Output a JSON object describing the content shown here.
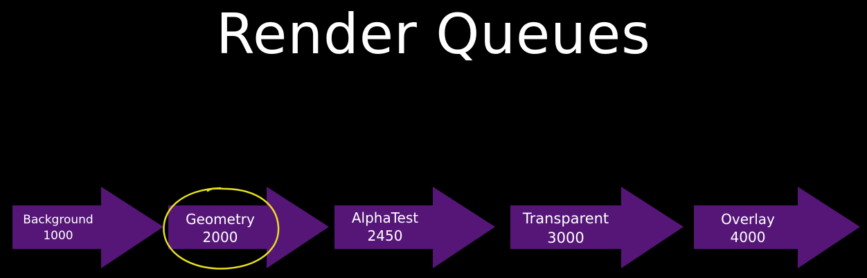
{
  "title": "Render Queues",
  "colors": {
    "background": "#000000",
    "arrow_fill": "#551677",
    "text": "#ffffff",
    "highlight_circle": "#e7e21f"
  },
  "queues": [
    {
      "name": "Background",
      "value": "1000"
    },
    {
      "name": "Geometry",
      "value": "2000"
    },
    {
      "name": "AlphaTest",
      "value": "2450"
    },
    {
      "name": "Transparent",
      "value": "3000"
    },
    {
      "name": "Overlay",
      "value": "4000"
    }
  ],
  "highlighted_queue": "Geometry"
}
